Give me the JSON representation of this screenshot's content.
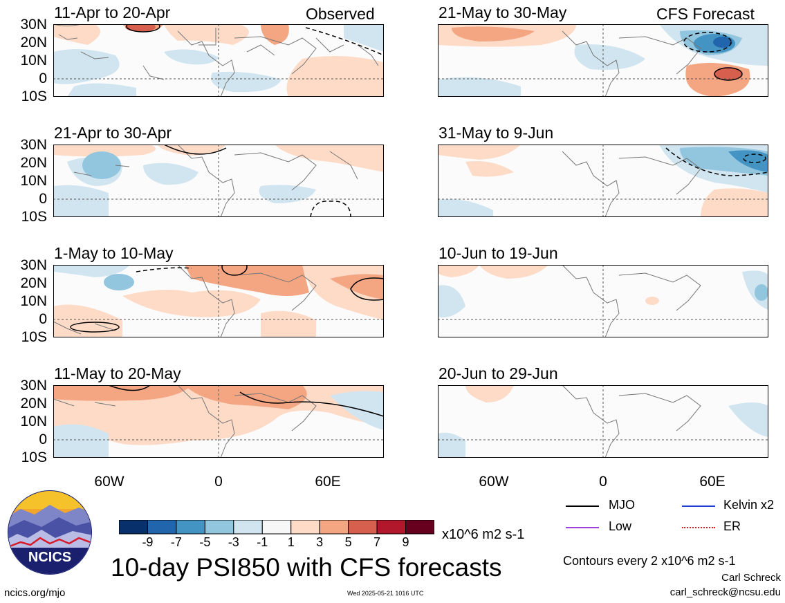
{
  "header": {
    "observed_label": "Observed",
    "forecast_label": "CFS Forecast"
  },
  "panels": [
    {
      "id": "p1",
      "title": "11-Apr to 20-Apr"
    },
    {
      "id": "p2",
      "title": "21-Apr to 30-Apr"
    },
    {
      "id": "p3",
      "title": "1-May to 10-May"
    },
    {
      "id": "p4",
      "title": "11-May to 20-May"
    },
    {
      "id": "p5",
      "title": "21-May to 30-May"
    },
    {
      "id": "p6",
      "title": "31-May to 9-Jun"
    },
    {
      "id": "p7",
      "title": "10-Jun to 19-Jun"
    },
    {
      "id": "p8",
      "title": "20-Jun to 29-Jun"
    }
  ],
  "lat_labels": [
    "30N",
    "20N",
    "10N",
    "0",
    "10S"
  ],
  "lon_labels": [
    "60W",
    "0",
    "60E"
  ],
  "colorbar": {
    "colors": [
      "#08306b",
      "#2166ac",
      "#4393c3",
      "#92c5de",
      "#d1e5f0",
      "#f7f7f7",
      "#fddbc7",
      "#f4a582",
      "#d6604d",
      "#b2182b",
      "#67001f"
    ],
    "labels": [
      "-9",
      "-7",
      "-5",
      "-3",
      "-1",
      "1",
      "3",
      "5",
      "7",
      "9"
    ],
    "units": "x10^6 m2 s-1"
  },
  "legend": [
    {
      "label": "MJO",
      "color": "#000000"
    },
    {
      "label": "Kelvin x2",
      "color": "#1f3fd6"
    },
    {
      "label": "Low",
      "color": "#a040e0"
    },
    {
      "label": "ER",
      "color": "#e02020"
    }
  ],
  "title": "10-day PSI850 with CFS forecasts",
  "contour_note": "Contours every 2 x10^6 m2 s-1",
  "author": "Carl Schreck",
  "email": "carl_schreck@ncsu.edu",
  "footer_url": "ncics.org/mjo",
  "timestamp": "Wed 2025-05-21 1016 UTC",
  "logo_text": "NCICS"
}
